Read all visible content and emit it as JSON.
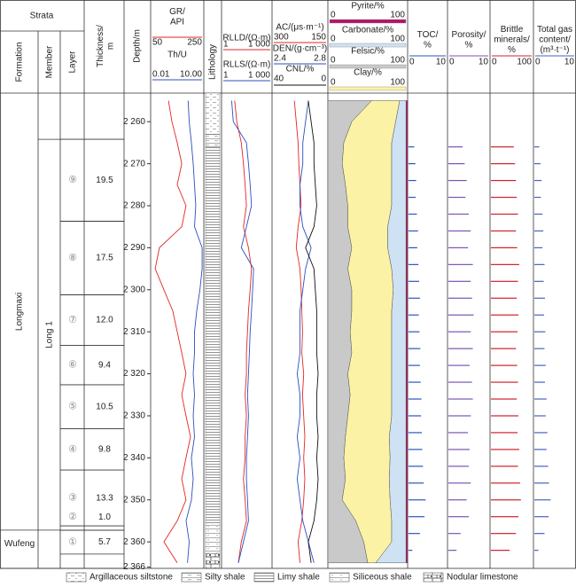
{
  "chart_data": {
    "type": "well-log",
    "header": {
      "strata": "Strata",
      "formation": "Formation",
      "member": "Member",
      "layer": "Layer",
      "thickness": "Thickness/\nm",
      "depth": "Depth/m",
      "lithology": "Lithology"
    },
    "ylim": [
      2253.2,
      2366.3
    ],
    "yticks": [
      {
        "value": 2260,
        "label": "2 260"
      },
      {
        "value": 2270,
        "label": "2 270"
      },
      {
        "value": 2280,
        "label": "2 280"
      },
      {
        "value": 2290,
        "label": "2 290"
      },
      {
        "value": 2300,
        "label": "2 300"
      },
      {
        "value": 2310,
        "label": "2 310"
      },
      {
        "value": 2320,
        "label": "2 320"
      },
      {
        "value": 2330,
        "label": "2 330"
      },
      {
        "value": 2340,
        "label": "2 340"
      },
      {
        "value": 2350,
        "label": "2 350"
      },
      {
        "value": 2360,
        "label": "2 360"
      },
      {
        "value": 2366,
        "label": "2 366"
      }
    ],
    "formations": [
      {
        "name": "Longmaxi",
        "top": 2253.2,
        "bottom": 2357.2
      },
      {
        "name": "Wufeng",
        "top": 2357.2,
        "bottom": 2366.3
      }
    ],
    "members": [
      {
        "name": "Long 1",
        "top": 2264.2,
        "bottom": 2357.2
      }
    ],
    "layers": [
      {
        "name": "⑨",
        "thickness": 19.5,
        "top": 2264.2,
        "bottom": 2283.7
      },
      {
        "name": "⑧",
        "thickness": 17.5,
        "top": 2283.7,
        "bottom": 2301.2
      },
      {
        "name": "⑦",
        "thickness": {
          "value": 12,
          "label": "12.0"
        },
        "top": 2301.2,
        "bottom": 2313.2
      },
      {
        "name": "⑥",
        "thickness": 9.4,
        "top": 2313.2,
        "bottom": 2322.6
      },
      {
        "name": "⑤",
        "thickness": 10.5,
        "top": 2322.6,
        "bottom": 2333.1
      },
      {
        "name": "④",
        "thickness": 9.8,
        "top": 2333.1,
        "bottom": 2342.9
      },
      {
        "name": "③",
        "thickness": 13.3,
        "top": 2342.9,
        "bottom": 2356.2
      },
      {
        "name": "②",
        "thickness": {
          "value": 1,
          "label": "1.0"
        },
        "top": 2356.2,
        "bottom": 2357.2
      },
      {
        "name": "①",
        "thickness": 5.7,
        "top": 2357.2,
        "bottom": 2362.9
      }
    ],
    "lithology": [
      {
        "name": "Argillaceous siltstone",
        "intervals": [
          [
            2253.2,
            2263.0
          ]
        ]
      },
      {
        "name": "Silty shale",
        "intervals": [
          [
            2263.0,
            2266.0
          ]
        ]
      },
      {
        "name": "Limy shale",
        "intervals": [
          [
            2266.0,
            2356.0
          ]
        ]
      },
      {
        "name": "Siliceous shale",
        "intervals": [
          [
            2356.0,
            2362.8
          ]
        ]
      },
      {
        "name": "Nodular limestone",
        "intervals": [
          [
            2362.8,
            2366.3
          ]
        ]
      }
    ],
    "depths": [
      2255,
      2260,
      2265,
      2270,
      2275,
      2280,
      2285,
      2290,
      2295,
      2300,
      2305,
      2310,
      2315,
      2320,
      2325,
      2330,
      2335,
      2340,
      2345,
      2350,
      2355,
      2360,
      2365
    ],
    "curves": [
      {
        "name": "GR/\nAPI",
        "color": "#e32626",
        "xlim": [
          50,
          250
        ],
        "values": [
          117,
          130,
          150,
          167,
          150,
          183,
          167,
          83,
          67,
          100,
          133,
          150,
          167,
          183,
          167,
          183,
          200,
          183,
          167,
          183,
          150,
          100,
          150
        ]
      },
      {
        "name": "Th/U",
        "color": "#2b4fc2",
        "log": true,
        "xlim": [
          0.01,
          {
            "value": 10,
            "label": "10.00"
          }
        ],
        "values": [
          1.3,
          1.5,
          2,
          2.5,
          3,
          3.5,
          3,
          8,
          8,
          6,
          4,
          3,
          3,
          2.5,
          3,
          2.5,
          3,
          2,
          2.5,
          2,
          1,
          1.5,
          1.2
        ]
      },
      {
        "name": "RLLD/(Ω·m)",
        "color": "#e32626",
        "log": true,
        "xlim": [
          1,
          {
            "value": 1000,
            "label": "1 000"
          }
        ],
        "values": [
          6,
          8,
          15,
          20,
          25,
          30,
          20,
          40,
          60,
          50,
          40,
          35,
          30,
          30,
          25,
          30,
          25,
          25,
          20,
          25,
          30,
          15,
          10
        ]
      },
      {
        "name": "RLLS/(Ω·m)",
        "color": "#2b4fc2",
        "log": true,
        "xlim": [
          1,
          {
            "value": 1000,
            "label": "1 000"
          }
        ],
        "values": [
          4,
          5,
          30,
          40,
          50,
          60,
          30,
          15,
          80,
          70,
          60,
          50,
          45,
          40,
          35,
          40,
          35,
          30,
          30,
          35,
          40,
          20,
          10
        ]
      },
      {
        "name": "AC/(μs·m⁻¹)",
        "color": "#e32626",
        "xlim": [
          300,
          150
        ],
        "values": [
          240,
          235,
          230,
          228,
          225,
          222,
          230,
          235,
          225,
          222,
          220,
          218,
          220,
          215,
          218,
          215,
          212,
          215,
          212,
          215,
          220,
          230,
          225
        ]
      },
      {
        "name": "DEN/(g·cm⁻³)",
        "color": "#2b4fc2",
        "xlim": [
          2.4,
          2.8
        ],
        "values": [
          2.66,
          2.64,
          2.62,
          2.62,
          2.6,
          2.6,
          2.62,
          2.68,
          2.64,
          2.62,
          2.6,
          2.6,
          2.6,
          2.58,
          2.6,
          2.6,
          2.58,
          2.6,
          2.58,
          2.6,
          2.62,
          2.66,
          2.7
        ]
      },
      {
        "name": "CNL/%",
        "color": "#111111",
        "xlim": [
          40,
          0
        ],
        "values": [
          14,
          12,
          10,
          10,
          9,
          8,
          10,
          16,
          10,
          9,
          8,
          8,
          8,
          7,
          8,
          8,
          7,
          8,
          7,
          8,
          10,
          14,
          12
        ]
      }
    ],
    "minerals": [
      {
        "name": "Felsic/%",
        "color": "#c9c9c9",
        "xlim": [
          0,
          100
        ],
        "values": [
          55,
          30,
          20,
          18,
          22,
          25,
          25,
          30,
          25,
          30,
          30,
          28,
          30,
          25,
          28,
          25,
          22,
          20,
          22,
          18,
          35,
          45,
          50
        ]
      },
      {
        "name": "Clay/%",
        "color": "#fbf2a6",
        "xlim": [
          0,
          100
        ],
        "values": [
          35,
          55,
          60,
          62,
          58,
          55,
          50,
          45,
          55,
          52,
          50,
          52,
          50,
          55,
          52,
          55,
          55,
          58,
          55,
          60,
          45,
          35,
          10
        ]
      },
      {
        "name": "Carbonate/%",
        "color": "#cfe2f4",
        "xlim": [
          0,
          100
        ],
        "values": [
          8,
          13,
          18,
          18,
          18,
          18,
          23,
          23,
          18,
          16,
          18,
          18,
          18,
          18,
          18,
          18,
          21,
          20,
          21,
          20,
          18,
          18,
          38
        ]
      },
      {
        "name": "Pyrite/%",
        "color": "#b5106a",
        "xlim": [
          0,
          100
        ],
        "values": [
          2,
          2,
          2,
          2,
          2,
          2,
          2,
          2,
          2,
          2,
          2,
          2,
          2,
          2,
          2,
          2,
          2,
          2,
          2,
          2,
          2,
          2,
          2
        ]
      }
    ],
    "sample_depths": [
      2266,
      2270,
      2274,
      2278,
      2282,
      2286,
      2290,
      2294,
      2298,
      2302,
      2306,
      2310,
      2314,
      2318,
      2322,
      2326,
      2330,
      2334,
      2338,
      2342,
      2346,
      2350,
      2354,
      2358,
      2362
    ],
    "bar_tracks": [
      {
        "name": "TOC/\n%",
        "color": "#2a55c0",
        "xlim": [
          0,
          10
        ],
        "values": [
          1.5,
          1.8,
          2.0,
          1.9,
          2.2,
          2.5,
          2.3,
          2.6,
          2.8,
          3.0,
          2.7,
          2.9,
          3.1,
          3.0,
          3.2,
          3.4,
          3.3,
          3.5,
          3.6,
          3.8,
          4.0,
          4.5,
          4.2,
          3.0,
          1.0
        ]
      },
      {
        "name": "Porosity/\n%",
        "color": "#7a55b5",
        "xlim": [
          0,
          10
        ],
        "values": [
          3.5,
          4,
          4.5,
          4.2,
          5,
          5.5,
          4.8,
          6,
          5.5,
          5.8,
          6.2,
          5.5,
          6,
          5.2,
          5.8,
          6,
          5.5,
          4.8,
          5.2,
          5,
          5.5,
          4.5,
          5,
          3,
          2
        ]
      },
      {
        "name": "Brittle\nminerals/\n%",
        "color": "#d0202e",
        "xlim": [
          0,
          100
        ],
        "values": [
          55,
          58,
          60,
          62,
          65,
          60,
          63,
          68,
          65,
          62,
          66,
          64,
          60,
          63,
          65,
          62,
          66,
          64,
          68,
          65,
          70,
          72,
          66,
          60,
          45
        ]
      },
      {
        "name": "Total gas\ncontent/\n(m³·t⁻¹)",
        "color": "#4a62c0",
        "xlim": [
          0,
          10
        ],
        "values": [
          1.2,
          1.5,
          1.8,
          1.6,
          2.0,
          2.2,
          2.0,
          2.5,
          2.3,
          2.6,
          2.4,
          2.7,
          2.5,
          2.8,
          2.6,
          3.0,
          2.8,
          3.2,
          3.0,
          3.4,
          3.6,
          4.0,
          3.5,
          2.5,
          1.0
        ]
      }
    ]
  }
}
